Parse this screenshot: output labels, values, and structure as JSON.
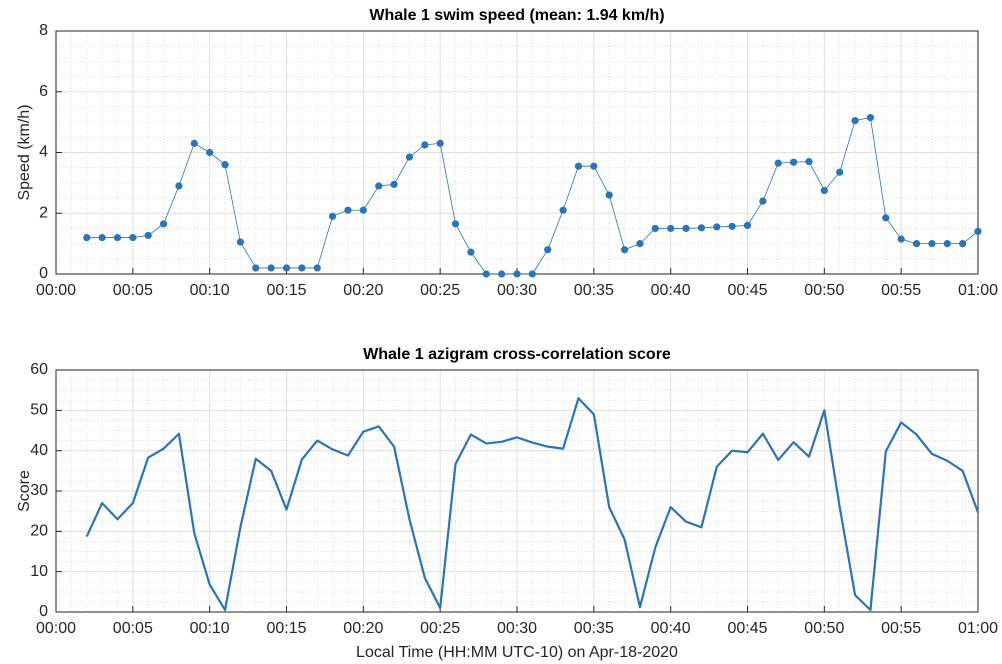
{
  "chart_data": [
    {
      "type": "line",
      "title": "Whale 1 swim speed (mean: 1.94 km/h)",
      "y_label": "Speed (km/h)",
      "x": [
        2,
        3,
        4,
        5,
        6,
        7,
        8,
        9,
        10,
        11,
        12,
        13,
        14,
        15,
        16,
        17,
        18,
        19,
        20,
        21,
        22,
        23,
        24,
        25,
        26,
        27,
        28,
        29,
        30,
        31,
        32,
        33,
        34,
        35,
        36,
        37,
        38,
        39,
        40,
        41,
        42,
        43,
        44,
        45,
        46,
        47,
        48,
        49,
        50,
        51,
        52,
        53,
        54,
        55,
        56,
        57,
        58,
        59,
        60
      ],
      "series": [
        {
          "color": "#2b74b8",
          "values": [
            1.2,
            1.2,
            1.2,
            1.2,
            1.27,
            1.65,
            2.9,
            4.3,
            4.0,
            3.6,
            1.05,
            0.2,
            0.2,
            0.2,
            0.2,
            0.2,
            1.9,
            2.1,
            2.1,
            2.9,
            2.95,
            3.85,
            4.25,
            4.3,
            1.65,
            0.72,
            0,
            0,
            0,
            0,
            0.8,
            2.1,
            3.55,
            3.55,
            2.6,
            0.8,
            1.0,
            1.5,
            1.5,
            1.5,
            1.52,
            1.55,
            1.57,
            1.6,
            2.4,
            3.65,
            3.68,
            3.7,
            2.75,
            3.35,
            5.05,
            5.15,
            1.85,
            1.15,
            1.0,
            1.0,
            1.0,
            1.0,
            1.4
          ]
        }
      ],
      "markers": true,
      "line_width": 0.8,
      "xlim": [
        0,
        60
      ],
      "xticks": [
        {
          "value": 0,
          "label": "00:00"
        },
        {
          "value": 5,
          "label": "00:05"
        },
        {
          "value": 10,
          "label": "00:10"
        },
        {
          "value": 15,
          "label": "00:15"
        },
        {
          "value": 20,
          "label": "00:20"
        },
        {
          "value": 25,
          "label": "00:25"
        },
        {
          "value": 30,
          "label": "00:30"
        },
        {
          "value": 35,
          "label": "00:35"
        },
        {
          "value": 40,
          "label": "00:40"
        },
        {
          "value": 45,
          "label": "00:45"
        },
        {
          "value": 50,
          "label": "00:50"
        },
        {
          "value": 55,
          "label": "00:55"
        },
        {
          "value": 60,
          "label": "01:00"
        }
      ],
      "ylim": [
        0,
        8
      ],
      "yticks": [
        0,
        2,
        4,
        6,
        8
      ],
      "grid": true,
      "minor_grid": true
    },
    {
      "type": "line",
      "title": "Whale 1 azigram cross-correlation score",
      "y_label": "Score",
      "x_label": "Local Time (HH:MM UTC-10) on Apr-18-2020",
      "x": [
        2,
        3,
        4,
        5,
        6,
        7,
        8,
        9,
        10,
        11,
        12,
        13,
        14,
        15,
        16,
        17,
        18,
        19,
        20,
        21,
        22,
        23,
        24,
        25,
        26,
        27,
        28,
        29,
        30,
        31,
        32,
        33,
        34,
        35,
        36,
        37,
        38,
        39,
        40,
        41,
        42,
        43,
        44,
        45,
        46,
        47,
        48,
        49,
        50,
        51,
        52,
        53,
        54,
        55,
        56,
        57,
        58,
        59,
        60
      ],
      "series": [
        {
          "color": "#2b74b8",
          "values": [
            18.7,
            27,
            23,
            27,
            38.3,
            40.5,
            44.2,
            19.5,
            6.8,
            0.5,
            21,
            38,
            35,
            25.4,
            37.8,
            42.5,
            40.3,
            38.8,
            44.7,
            46,
            41,
            23,
            8.5,
            1,
            36.7,
            44,
            41.8,
            42.2,
            43.3,
            42,
            41,
            40.5,
            53,
            49,
            26,
            18,
            1.2,
            16,
            26,
            22.4,
            21,
            36,
            40,
            39.6,
            44.2,
            37.7,
            42.1,
            38.5,
            50,
            26,
            4.2,
            0.5,
            39.8,
            47,
            44,
            39.2,
            37.5,
            35,
            24.7
          ]
        }
      ],
      "markers": false,
      "line_width": 2.2,
      "xlim": [
        0,
        60
      ],
      "xticks": [
        {
          "value": 0,
          "label": "00:00"
        },
        {
          "value": 5,
          "label": "00:05"
        },
        {
          "value": 10,
          "label": "00:10"
        },
        {
          "value": 15,
          "label": "00:15"
        },
        {
          "value": 20,
          "label": "00:20"
        },
        {
          "value": 25,
          "label": "00:25"
        },
        {
          "value": 30,
          "label": "00:30"
        },
        {
          "value": 35,
          "label": "00:35"
        },
        {
          "value": 40,
          "label": "00:40"
        },
        {
          "value": 45,
          "label": "00:45"
        },
        {
          "value": 50,
          "label": "00:50"
        },
        {
          "value": 55,
          "label": "00:55"
        },
        {
          "value": 60,
          "label": "01:00"
        }
      ],
      "ylim": [
        0,
        60
      ],
      "yticks": [
        0,
        10,
        20,
        30,
        40,
        50,
        60
      ],
      "grid": true,
      "minor_grid": true
    }
  ]
}
